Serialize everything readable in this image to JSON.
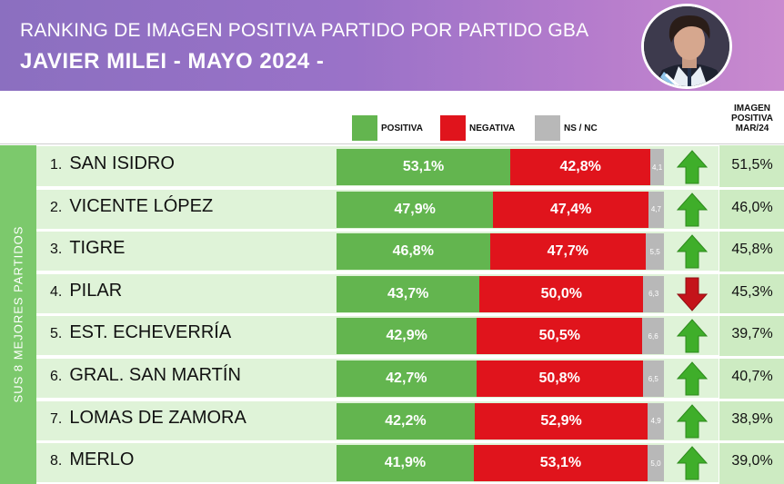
{
  "header": {
    "title_line1": "RANKING DE IMAGEN POSITIVA PARTIDO POR PARTIDO GBA",
    "title_line2": "JAVIER MILEI - MAYO 2024 -"
  },
  "legend": {
    "positiva": "POSITIVA",
    "negativa": "NEGATIVA",
    "nsnc": "NS / NC"
  },
  "mar_header": [
    "IMAGEN",
    "POSITIVA",
    "MAR/24"
  ],
  "side_label": "SUS 8 MEJORES PARTIDOS",
  "colors": {
    "positiva": "#63b54f",
    "negativa": "#e0141c",
    "nsnc": "#b8b8b8",
    "header": "#9a72c8",
    "side": "#7cc96c"
  },
  "chart_data": {
    "type": "bar",
    "orientation": "horizontal-stacked",
    "categories": [
      "1.",
      "2.",
      "3.",
      "4.",
      "5.",
      "6.",
      "7.",
      "8."
    ],
    "names": [
      "SAN ISIDRO",
      "VICENTE LÓPEZ",
      "TIGRE",
      "PILAR",
      "EST. ECHEVERRÍA",
      "GRAL. SAN MARTÍN",
      "LOMAS DE ZAMORA",
      "MERLO"
    ],
    "series": [
      {
        "name": "POSITIVA",
        "values": [
          53.1,
          47.9,
          46.8,
          43.7,
          42.9,
          42.7,
          42.2,
          41.9
        ],
        "labels": [
          "53,1%",
          "47,9%",
          "46,8%",
          "43,7%",
          "42,9%",
          "42,7%",
          "42,2%",
          "41,9%"
        ]
      },
      {
        "name": "NEGATIVA",
        "values": [
          42.8,
          47.4,
          47.7,
          50.0,
          50.5,
          50.8,
          52.9,
          53.1
        ],
        "labels": [
          "42,8%",
          "47,4%",
          "47,7%",
          "50,0%",
          "50,5%",
          "50,8%",
          "52,9%",
          "53,1%"
        ]
      },
      {
        "name": "NS / NC",
        "values": [
          4.1,
          4.7,
          5.5,
          6.3,
          6.6,
          6.5,
          4.9,
          5.0
        ],
        "labels": [
          "4,1",
          "4,7",
          "5,5",
          "6,3",
          "6,6",
          "6,5",
          "4,9",
          "5,0"
        ]
      }
    ],
    "trend": [
      "up",
      "up",
      "up",
      "down",
      "up",
      "up",
      "up",
      "up"
    ],
    "imagen_positiva_mar24": [
      "51,5%",
      "46,0%",
      "45,8%",
      "45,3%",
      "39,7%",
      "40,7%",
      "38,9%",
      "39,0%"
    ],
    "xlim": [
      0,
      100
    ]
  }
}
